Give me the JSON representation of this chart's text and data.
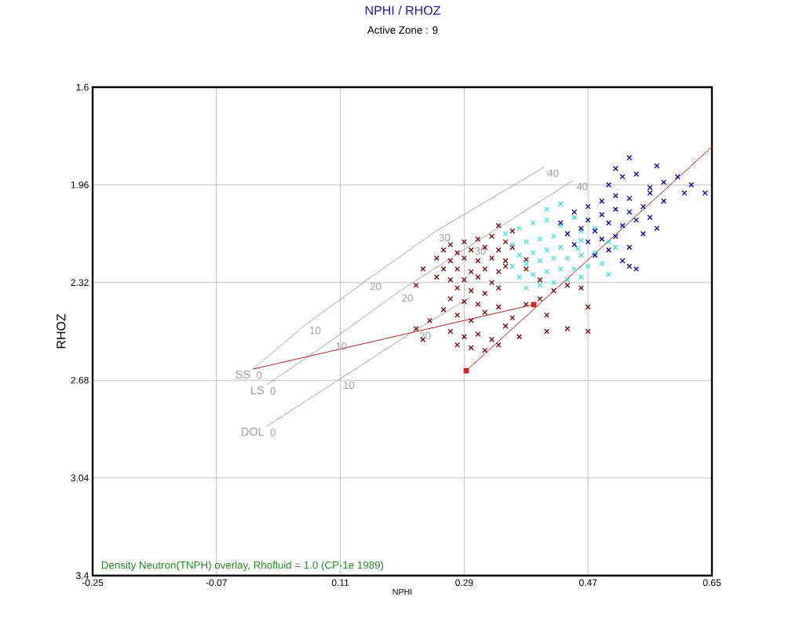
{
  "chart_data": {
    "type": "scatter",
    "title": "NPHI / RHOZ",
    "subtitle": "Active Zone : 9",
    "xlabel": "NPHI",
    "ylabel": "RHOZ",
    "xlim": [
      -0.25,
      0.65
    ],
    "ylim": [
      3.4,
      1.6
    ],
    "xticks": [
      -0.25,
      -0.07,
      0.11,
      0.29,
      0.47,
      0.65
    ],
    "yticks": [
      1.6,
      1.96,
      2.32,
      2.68,
      3.04,
      3.4
    ],
    "grid": true,
    "marker": "cross",
    "series": [
      {
        "color": "#800000",
        "x": [
          0.27,
          0.29,
          0.31,
          0.33,
          0.35,
          0.26,
          0.28,
          0.3,
          0.32,
          0.34,
          0.36,
          0.38,
          0.25,
          0.27,
          0.29,
          0.31,
          0.33,
          0.35,
          0.26,
          0.28,
          0.3,
          0.32,
          0.34,
          0.35,
          0.25,
          0.27,
          0.29,
          0.31,
          0.33,
          0.28,
          0.3,
          0.32,
          0.34,
          0.27,
          0.29,
          0.31,
          0.26,
          0.28,
          0.3,
          0.32,
          0.34,
          0.27,
          0.29,
          0.31,
          0.33,
          0.35,
          0.3,
          0.32,
          0.34,
          0.28,
          0.24,
          0.22,
          0.23,
          0.37,
          0.36,
          0.38,
          0.4,
          0.42,
          0.44,
          0.41,
          0.46,
          0.47,
          0.44,
          0.41,
          0.47,
          0.4,
          0.38,
          0.36,
          0.34,
          0.23,
          0.22
        ],
        "values": [
          2.18,
          2.17,
          2.16,
          2.15,
          2.17,
          2.2,
          2.21,
          2.2,
          2.19,
          2.2,
          2.19,
          2.235,
          2.23,
          2.24,
          2.23,
          2.24,
          2.23,
          2.24,
          2.27,
          2.27,
          2.28,
          2.27,
          2.28,
          2.26,
          2.3,
          2.31,
          2.31,
          2.3,
          2.32,
          2.34,
          2.35,
          2.36,
          2.34,
          2.38,
          2.39,
          2.4,
          2.42,
          2.44,
          2.46,
          2.43,
          2.41,
          2.5,
          2.52,
          2.51,
          2.53,
          2.48,
          2.56,
          2.57,
          2.55,
          2.55,
          2.46,
          2.49,
          2.53,
          2.52,
          2.45,
          2.4,
          2.38,
          2.35,
          2.33,
          2.44,
          2.34,
          2.41,
          2.49,
          2.5,
          2.5,
          2.31,
          2.27,
          2.13,
          2.11,
          2.27,
          2.33
        ]
      },
      {
        "color": "#40e0e0",
        "x": [
          0.35,
          0.37,
          0.39,
          0.41,
          0.43,
          0.45,
          0.36,
          0.38,
          0.4,
          0.42,
          0.44,
          0.46,
          0.48,
          0.37,
          0.39,
          0.41,
          0.43,
          0.455,
          0.46,
          0.5,
          0.36,
          0.38,
          0.4,
          0.42,
          0.44,
          0.46,
          0.48,
          0.51,
          0.37,
          0.39,
          0.41,
          0.43,
          0.45,
          0.47,
          0.49,
          0.38,
          0.4,
          0.42,
          0.44,
          0.46,
          0.5,
          0.41,
          0.43
        ],
        "values": [
          2.14,
          2.12,
          2.1,
          2.09,
          2.11,
          2.08,
          2.18,
          2.17,
          2.16,
          2.15,
          2.14,
          2.13,
          2.12,
          2.22,
          2.21,
          2.2,
          2.19,
          2.195,
          2.165,
          2.17,
          2.26,
          2.25,
          2.24,
          2.23,
          2.23,
          2.22,
          2.21,
          2.19,
          2.3,
          2.29,
          2.28,
          2.27,
          2.27,
          2.26,
          2.25,
          2.34,
          2.33,
          2.32,
          2.31,
          2.3,
          2.29,
          2.05,
          2.03
        ]
      },
      {
        "color": "#0000a0",
        "x": [
          0.43,
          0.45,
          0.47,
          0.49,
          0.51,
          0.53,
          0.47,
          0.49,
          0.51,
          0.53,
          0.55,
          0.44,
          0.46,
          0.48,
          0.5,
          0.52,
          0.54,
          0.56,
          0.45,
          0.47,
          0.49,
          0.51,
          0.55,
          0.57,
          0.48,
          0.5,
          0.52,
          0.54,
          0.53,
          0.5,
          0.52,
          0.51,
          0.53,
          0.54,
          0.56,
          0.58,
          0.57,
          0.6,
          0.61,
          0.62,
          0.64,
          0.58,
          0.53,
          0.56
        ],
        "values": [
          2.1,
          2.06,
          2.04,
          2.02,
          2.0,
          2.01,
          2.09,
          2.07,
          2.05,
          2.06,
          2.04,
          2.14,
          2.12,
          2.13,
          2.1,
          2.11,
          2.09,
          2.08,
          2.18,
          2.17,
          2.16,
          2.15,
          2.14,
          2.12,
          2.22,
          2.2,
          2.24,
          2.27,
          2.19,
          1.96,
          1.93,
          1.9,
          1.86,
          1.92,
          1.97,
          1.95,
          1.89,
          1.93,
          1.99,
          1.96,
          1.99,
          2.02,
          2.26,
          1.99
        ]
      },
      {
        "name": "SS",
        "color": "#a0a0a0",
        "type": "line",
        "marker": "none",
        "x": [
          -0.017,
          0.06,
          0.148,
          0.248,
          0.406
        ],
        "values": [
          2.639,
          2.474,
          2.312,
          2.132,
          1.895
        ]
      },
      {
        "name": "LS",
        "color": "#a0a0a0",
        "type": "line",
        "marker": "none",
        "x": [
          0.003,
          0.098,
          0.194,
          0.3,
          0.448
        ],
        "values": [
          2.697,
          2.532,
          2.355,
          2.182,
          1.944
        ]
      },
      {
        "name": "DOL",
        "color": "#a0a0a0",
        "type": "line",
        "marker": "none",
        "x": [
          0.003,
          0.109,
          0.22,
          0.3
        ],
        "values": [
          2.85,
          2.676,
          2.494,
          2.373
        ]
      },
      {
        "color": "#b01010",
        "type": "line",
        "marker": "none",
        "x": [
          -0.017,
          0.391
        ],
        "values": [
          2.639,
          2.401
        ]
      },
      {
        "color": "#b01010",
        "type": "line",
        "marker": "none",
        "x": [
          0.293,
          0.65
        ],
        "values": [
          2.645,
          1.82
        ]
      },
      {
        "color": "#e02020",
        "marker": "square",
        "x": [
          0.293,
          0.391
        ],
        "values": [
          2.645,
          2.401
        ]
      }
    ],
    "annotations": [
      {
        "text": "0",
        "x": -0.017,
        "y": 2.639
      },
      {
        "text": "10",
        "x": 0.06,
        "y": 2.474
      },
      {
        "text": "20",
        "x": 0.148,
        "y": 2.312
      },
      {
        "text": "30",
        "x": 0.248,
        "y": 2.132
      },
      {
        "text": "40",
        "x": 0.406,
        "y": 1.895
      },
      {
        "text": "0",
        "x": 0.003,
        "y": 2.697
      },
      {
        "text": "10",
        "x": 0.098,
        "y": 2.532
      },
      {
        "text": "20",
        "x": 0.194,
        "y": 2.355
      },
      {
        "text": "30",
        "x": 0.3,
        "y": 2.182
      },
      {
        "text": "40",
        "x": 0.448,
        "y": 1.944
      },
      {
        "text": "0",
        "x": 0.003,
        "y": 2.85
      },
      {
        "text": "10",
        "x": 0.109,
        "y": 2.676
      },
      {
        "text": "20",
        "x": 0.22,
        "y": 2.494
      },
      "Density Neutron(TNPH) overlay, Rhofluid = 1.0 (CP-1e 1989)"
    ]
  }
}
